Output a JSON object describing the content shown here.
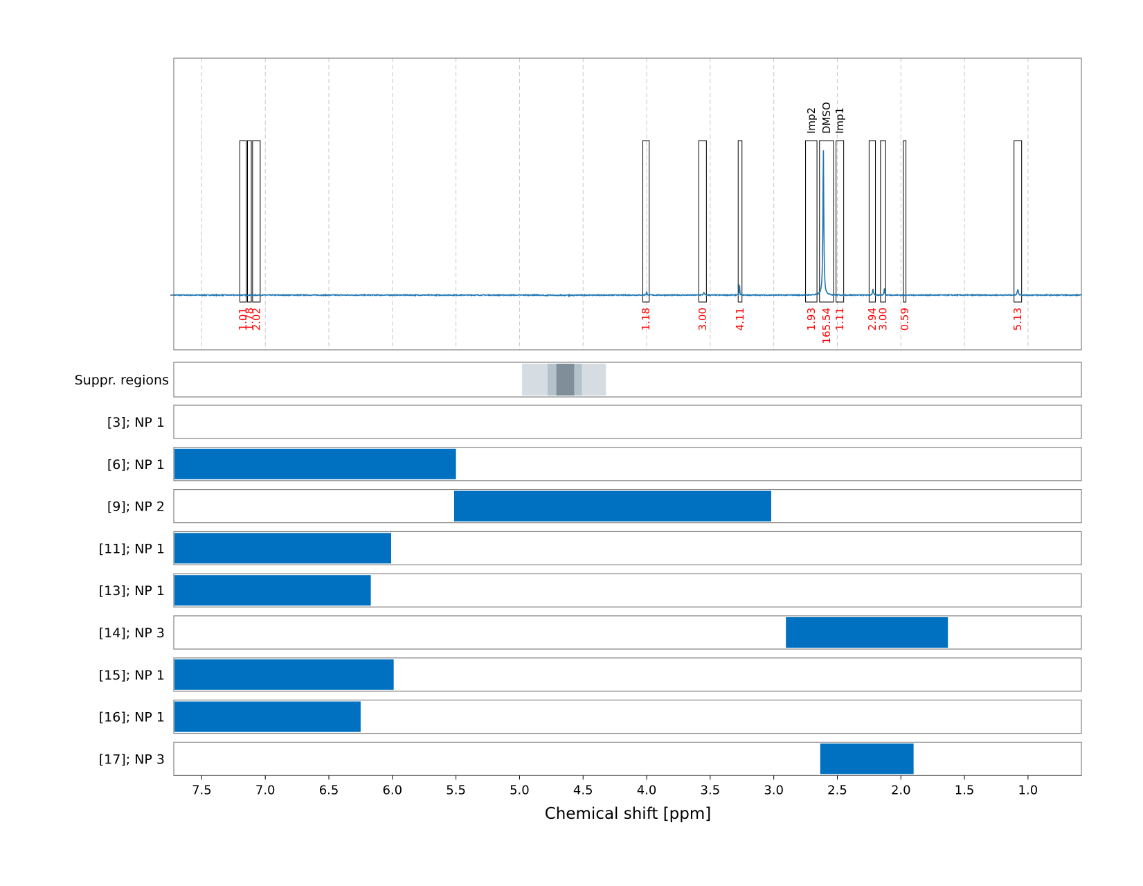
{
  "chart_data": {
    "type": "line",
    "xlabel": "Chemical shift [ppm]",
    "xlim": [
      7.72,
      0.58
    ],
    "x_ticks": [
      "7.5",
      "7.0",
      "6.5",
      "6.0",
      "5.5",
      "5.0",
      "4.5",
      "4.0",
      "3.5",
      "3.0",
      "2.5",
      "2.0",
      "1.5",
      "1.0"
    ],
    "x_tick_values": [
      7.5,
      7.0,
      6.5,
      6.0,
      5.5,
      5.0,
      4.5,
      4.0,
      3.5,
      3.0,
      2.5,
      2.0,
      1.5,
      1.0
    ],
    "grid": "vertical dashed",
    "spectrum": {
      "color": "#1f77b4",
      "baseline_noise": 0.003,
      "peaks": [
        {
          "shift": 2.61,
          "height": 1.0,
          "width": 0.004
        },
        {
          "shift": 3.27,
          "height": 0.09,
          "width": 0.002
        },
        {
          "shift": 2.13,
          "height": 0.05,
          "width": 0.003
        },
        {
          "shift": 2.22,
          "height": 0.04,
          "width": 0.004
        },
        {
          "shift": 1.08,
          "height": 0.04,
          "width": 0.005
        },
        {
          "shift": 4.0,
          "height": 0.02,
          "width": 0.004
        },
        {
          "shift": 3.55,
          "height": 0.015,
          "width": 0.006
        }
      ]
    },
    "integration_regions": [
      {
        "from": 7.2,
        "to": 7.15,
        "integral": "1.01",
        "label": ""
      },
      {
        "from": 7.14,
        "to": 7.11,
        "integral": "1.78",
        "label": ""
      },
      {
        "from": 7.1,
        "to": 7.04,
        "integral": "2.02",
        "label": ""
      },
      {
        "from": 4.03,
        "to": 3.98,
        "integral": "1.18",
        "label": ""
      },
      {
        "from": 3.59,
        "to": 3.53,
        "integral": "3.00",
        "label": ""
      },
      {
        "from": 3.28,
        "to": 3.25,
        "integral": "4.11",
        "label": ""
      },
      {
        "from": 2.75,
        "to": 2.66,
        "integral": "1.93",
        "label": "Imp2"
      },
      {
        "from": 2.64,
        "to": 2.53,
        "integral": "165.54",
        "label": "DMSO"
      },
      {
        "from": 2.51,
        "to": 2.45,
        "integral": "1.11",
        "label": "Imp1"
      },
      {
        "from": 2.25,
        "to": 2.2,
        "integral": "2.94",
        "label": ""
      },
      {
        "from": 2.16,
        "to": 2.12,
        "integral": "3.00",
        "label": ""
      },
      {
        "from": 1.98,
        "to": 1.96,
        "integral": "0.59",
        "label": ""
      },
      {
        "from": 1.11,
        "to": 1.05,
        "integral": "5.13",
        "label": ""
      }
    ],
    "suppression": {
      "label": "Suppr. regions",
      "bands": [
        {
          "from": 4.98,
          "to": 4.32,
          "shade": "#d5dde3"
        },
        {
          "from": 4.78,
          "to": 4.51,
          "shade": "#b4c2cb"
        },
        {
          "from": 4.71,
          "to": 4.57,
          "shade": "#7f8e98"
        }
      ]
    },
    "tracks": [
      {
        "label": "[3]; NP 1",
        "from": null,
        "to": null
      },
      {
        "label": "[6]; NP 1",
        "from": 7.72,
        "to": 5.5
      },
      {
        "label": "[9]; NP 2",
        "from": 5.52,
        "to": 3.02
      },
      {
        "label": "[11]; NP 1",
        "from": 7.72,
        "to": 6.01
      },
      {
        "label": "[13]; NP 1",
        "from": 7.72,
        "to": 6.17
      },
      {
        "label": "[14]; NP 3",
        "from": 2.91,
        "to": 1.63
      },
      {
        "label": "[15]; NP 1",
        "from": 7.72,
        "to": 5.99
      },
      {
        "label": "[16]; NP 1",
        "from": 7.72,
        "to": 6.25
      },
      {
        "label": "[17]; NP 3",
        "from": 2.64,
        "to": 1.9
      }
    ],
    "colors": {
      "spectrum": "#1f77b4",
      "track_bar": "#0070c0",
      "integral_text": "#ff0000",
      "frame": "#808080",
      "grid": "#c8c8c8"
    }
  }
}
